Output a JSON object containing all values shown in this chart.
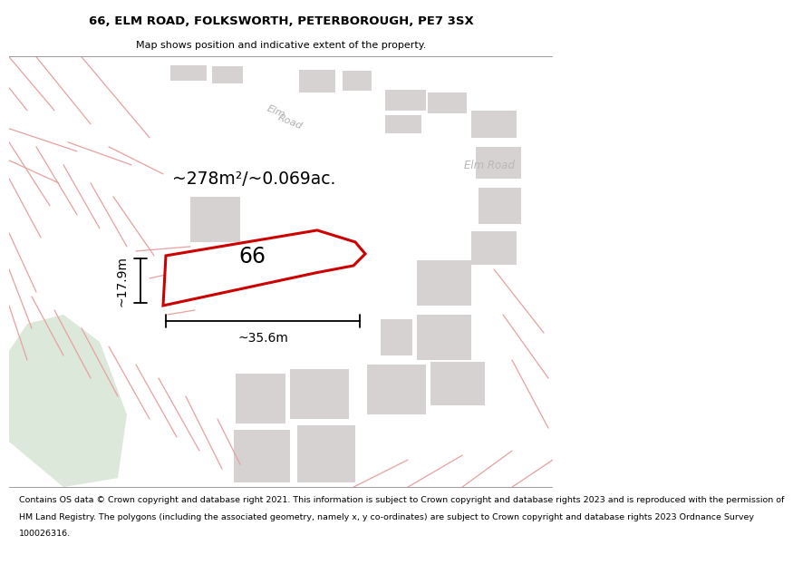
{
  "title": "66, ELM ROAD, FOLKSWORTH, PETERBOROUGH, PE7 3SX",
  "subtitle": "Map shows position and indicative extent of the property.",
  "footer_lines": [
    "Contains OS data © Crown copyright and database right 2021. This information is subject to Crown copyright and database rights 2023 and is reproduced with the permission of",
    "HM Land Registry. The polygons (including the associated geometry, namely x, y co-ordinates) are subject to Crown copyright and database rights 2023 Ordnance Survey",
    "100026316."
  ],
  "area_label": "~278m²/~0.069ac.",
  "width_label": "~35.6m",
  "height_label": "~17.9m",
  "number_label": "66",
  "background_color": "#f2eded",
  "road_color": "#ffffff",
  "building_color": "#d6d2d2",
  "green_color": "#dce8da",
  "pink_line_color": "#e8a0a0",
  "plot_outline_color": "#cc0000",
  "plot_fill_color": "#ffffff",
  "figsize": [
    6.0,
    6.25
  ]
}
